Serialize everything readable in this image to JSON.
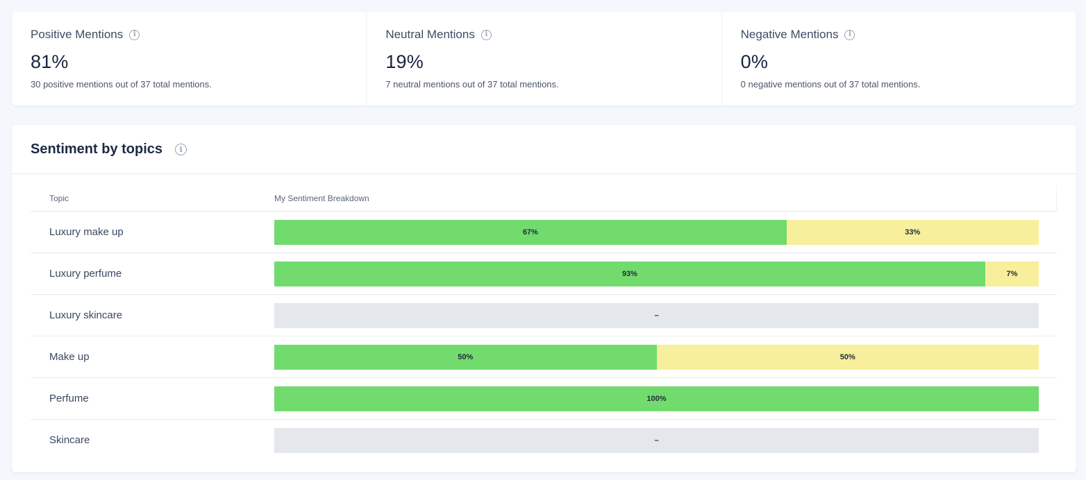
{
  "kpis": [
    {
      "title": "Positive Mentions",
      "value": "81%",
      "subtitle": "30 positive mentions out of 37 total mentions."
    },
    {
      "title": "Neutral Mentions",
      "value": "19%",
      "subtitle": "7 neutral mentions out of 37 total mentions."
    },
    {
      "title": "Negative Mentions",
      "value": "0%",
      "subtitle": "0 negative mentions out of 37 total mentions."
    }
  ],
  "info_icon": "info-circle-icon",
  "panel": {
    "title": "Sentiment by topics",
    "columns": {
      "topic": "Topic",
      "breakdown": "My Sentiment Breakdown"
    },
    "empty_label": "–",
    "rows": [
      {
        "topic": "Luxury make up",
        "positive": 67,
        "neutral": 33,
        "negative": 0
      },
      {
        "topic": "Luxury perfume",
        "positive": 93,
        "neutral": 7,
        "negative": 0
      },
      {
        "topic": "Luxury skincare",
        "positive": null,
        "neutral": null,
        "negative": null
      },
      {
        "topic": "Make up",
        "positive": 50,
        "neutral": 50,
        "negative": 0
      },
      {
        "topic": "Perfume",
        "positive": 100,
        "neutral": 0,
        "negative": 0
      },
      {
        "topic": "Skincare",
        "positive": null,
        "neutral": null,
        "negative": null
      }
    ]
  },
  "colors": {
    "positive": "#72db6e",
    "neutral": "#f8ef9c",
    "negative": "#f2a1a1",
    "empty": "#e4e7eb"
  }
}
